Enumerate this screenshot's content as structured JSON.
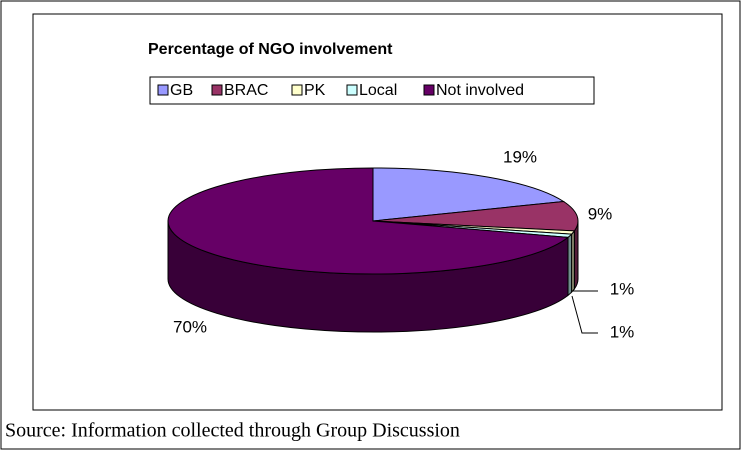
{
  "chart_data": {
    "type": "pie3d",
    "title": "Percentage of NGO involvement",
    "categories": [
      "GB",
      "BRAC",
      "PK",
      "Local",
      "Not involved"
    ],
    "values": [
      19,
      9,
      1,
      1,
      70
    ],
    "value_labels": [
      "19%",
      "9%",
      "1%",
      "1%",
      "70%"
    ],
    "colors": [
      "#9999ff",
      "#993366",
      "#ffffcc",
      "#ccffff",
      "#660066"
    ],
    "legend": "top"
  },
  "source": "Source: Information collected through Group Discussion"
}
